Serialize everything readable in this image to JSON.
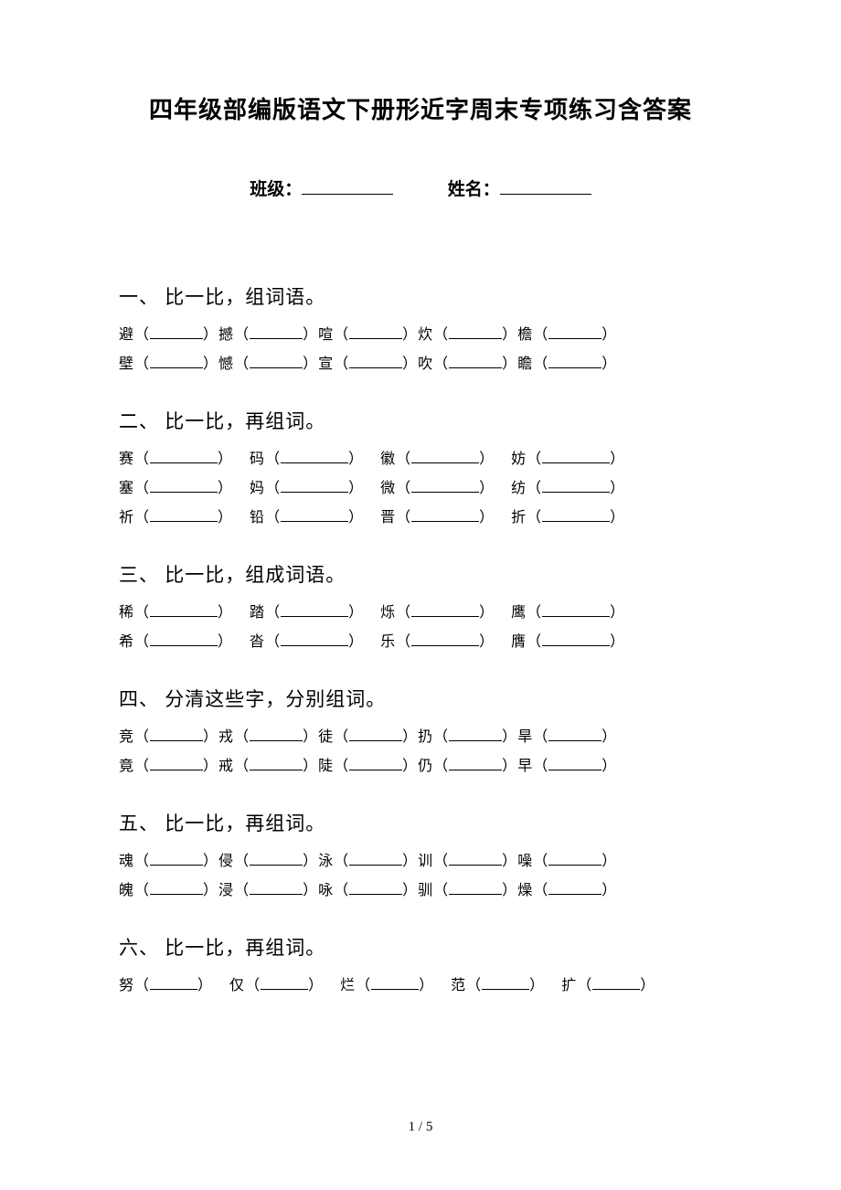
{
  "title": "四年级部编版语文下册形近字周末专项练习含答案",
  "class_label": "班级：",
  "name_label": "姓名：",
  "sections": [
    {
      "heading": "一、 比一比，组词语。",
      "blank_class": "blank-short",
      "gap_class": "",
      "rows": [
        [
          "避",
          "撼",
          "喧",
          "炊",
          "檐"
        ],
        [
          "壁",
          "憾",
          "宣",
          "吹",
          "瞻"
        ]
      ]
    },
    {
      "heading": "二、 比一比，再组词。",
      "blank_class": "blank-med",
      "gap_class": "gap-sm",
      "rows": [
        [
          "赛",
          "码",
          "徽",
          "妨"
        ],
        [
          "塞",
          "妈",
          "微",
          "纺"
        ],
        [
          "祈",
          "铅",
          "晋",
          "折"
        ]
      ]
    },
    {
      "heading": "三、 比一比，组成词语。",
      "blank_class": "blank-med",
      "gap_class": "gap-sm",
      "rows": [
        [
          "稀",
          "踏",
          "烁",
          "鹰"
        ],
        [
          "希",
          "沓",
          "乐",
          "膺"
        ]
      ]
    },
    {
      "heading": "四、 分清这些字，分别组词。",
      "blank_class": "blank-short",
      "gap_class": "",
      "rows": [
        [
          "竞",
          "戎",
          "徒",
          "扔",
          "旱"
        ],
        [
          "竟",
          "戒",
          "陡",
          "仍",
          "早"
        ]
      ]
    },
    {
      "heading": "五、 比一比，再组词。",
      "blank_class": "blank-short",
      "gap_class": "",
      "rows": [
        [
          "魂",
          "侵",
          "泳",
          "训",
          "噪"
        ],
        [
          "魄",
          "浸",
          "咏",
          "驯",
          "燥"
        ]
      ]
    },
    {
      "heading": "六、 比一比，再组词。",
      "blank_class": "blank-sm",
      "gap_class": "gap-sm",
      "rows": [
        [
          "努",
          "仅",
          "烂",
          "范",
          "扩"
        ]
      ]
    }
  ],
  "page_number": "1 / 5"
}
